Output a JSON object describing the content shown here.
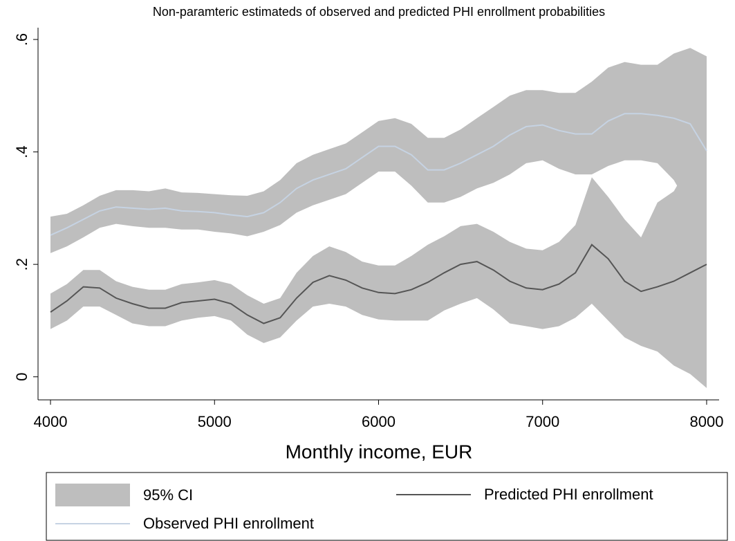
{
  "chart_data": {
    "type": "line-ci",
    "title": "Non-paramteric estimateds of observed and predicted PHI enrollment probabilities",
    "x_label": "Monthly income, EUR",
    "x": [
      4000,
      4100,
      4200,
      4300,
      4400,
      4500,
      4600,
      4700,
      4800,
      4900,
      5000,
      5100,
      5200,
      5300,
      5400,
      5500,
      5600,
      5700,
      5800,
      5900,
      6000,
      6100,
      6200,
      6300,
      6400,
      6500,
      6600,
      6700,
      6800,
      6900,
      7000,
      7100,
      7200,
      7300,
      7400,
      7500,
      7600,
      7700,
      7800,
      7900,
      8000
    ],
    "xlim": [
      3924,
      8076
    ],
    "xticks": [
      4000,
      5000,
      6000,
      7000,
      8000
    ],
    "ylim": [
      -0.041,
      0.621
    ],
    "yticks": [
      {
        "value": 0,
        "label": "0"
      },
      {
        "value": 0.2,
        "label": ".2"
      },
      {
        "value": 0.4,
        "label": ".4"
      },
      {
        "value": 0.6,
        "label": ".6"
      }
    ],
    "ci_label": "95% CI",
    "ci_color": "#bebebe",
    "series": [
      {
        "name": "Observed PHI enrollment",
        "color": "#c6d3e3",
        "values": [
          0.252,
          0.265,
          0.28,
          0.295,
          0.302,
          0.3,
          0.298,
          0.3,
          0.295,
          0.294,
          0.292,
          0.288,
          0.285,
          0.292,
          0.31,
          0.335,
          0.35,
          0.36,
          0.37,
          0.39,
          0.41,
          0.41,
          0.395,
          0.368,
          0.368,
          0.38,
          0.395,
          0.41,
          0.43,
          0.445,
          0.448,
          0.438,
          0.432,
          0.432,
          0.455,
          0.468,
          0.468,
          0.465,
          0.46,
          0.45,
          0.402
        ],
        "ci_lower": [
          0.22,
          0.232,
          0.248,
          0.265,
          0.272,
          0.268,
          0.265,
          0.265,
          0.262,
          0.262,
          0.258,
          0.255,
          0.25,
          0.258,
          0.27,
          0.292,
          0.305,
          0.315,
          0.325,
          0.345,
          0.365,
          0.365,
          0.34,
          0.31,
          0.31,
          0.32,
          0.335,
          0.345,
          0.36,
          0.38,
          0.385,
          0.37,
          0.36,
          0.36,
          0.375,
          0.385,
          0.385,
          0.38,
          0.35,
          0.3,
          0.25
        ],
        "ci_upper": [
          0.285,
          0.29,
          0.305,
          0.322,
          0.332,
          0.332,
          0.33,
          0.335,
          0.328,
          0.327,
          0.325,
          0.323,
          0.322,
          0.33,
          0.35,
          0.38,
          0.395,
          0.405,
          0.415,
          0.435,
          0.455,
          0.46,
          0.45,
          0.425,
          0.425,
          0.44,
          0.46,
          0.48,
          0.5,
          0.51,
          0.51,
          0.505,
          0.505,
          0.525,
          0.55,
          0.56,
          0.555,
          0.555,
          0.575,
          0.585,
          0.57
        ]
      },
      {
        "name": "Predicted PHI enrollment",
        "color": "#555555",
        "values": [
          0.115,
          0.135,
          0.16,
          0.158,
          0.14,
          0.13,
          0.122,
          0.122,
          0.132,
          0.135,
          0.138,
          0.13,
          0.11,
          0.095,
          0.105,
          0.14,
          0.168,
          0.18,
          0.172,
          0.158,
          0.15,
          0.148,
          0.155,
          0.168,
          0.185,
          0.2,
          0.205,
          0.19,
          0.17,
          0.158,
          0.155,
          0.165,
          0.185,
          0.235,
          0.21,
          0.17,
          0.152,
          0.16,
          0.17,
          0.185,
          0.2
        ],
        "ci_lower": [
          0.085,
          0.1,
          0.125,
          0.125,
          0.11,
          0.095,
          0.09,
          0.09,
          0.1,
          0.105,
          0.108,
          0.1,
          0.075,
          0.06,
          0.07,
          0.1,
          0.125,
          0.13,
          0.125,
          0.11,
          0.102,
          0.1,
          0.1,
          0.1,
          0.118,
          0.13,
          0.14,
          0.12,
          0.095,
          0.09,
          0.085,
          0.09,
          0.105,
          0.13,
          0.1,
          0.07,
          0.055,
          0.045,
          0.02,
          0.005,
          -0.02
        ],
        "ci_upper": [
          0.148,
          0.165,
          0.19,
          0.19,
          0.17,
          0.16,
          0.155,
          0.155,
          0.165,
          0.168,
          0.172,
          0.165,
          0.145,
          0.13,
          0.14,
          0.185,
          0.215,
          0.232,
          0.222,
          0.205,
          0.198,
          0.198,
          0.215,
          0.235,
          0.25,
          0.268,
          0.272,
          0.258,
          0.24,
          0.228,
          0.225,
          0.24,
          0.27,
          0.355,
          0.32,
          0.28,
          0.248,
          0.31,
          0.33,
          0.38,
          0.5
        ]
      }
    ]
  }
}
